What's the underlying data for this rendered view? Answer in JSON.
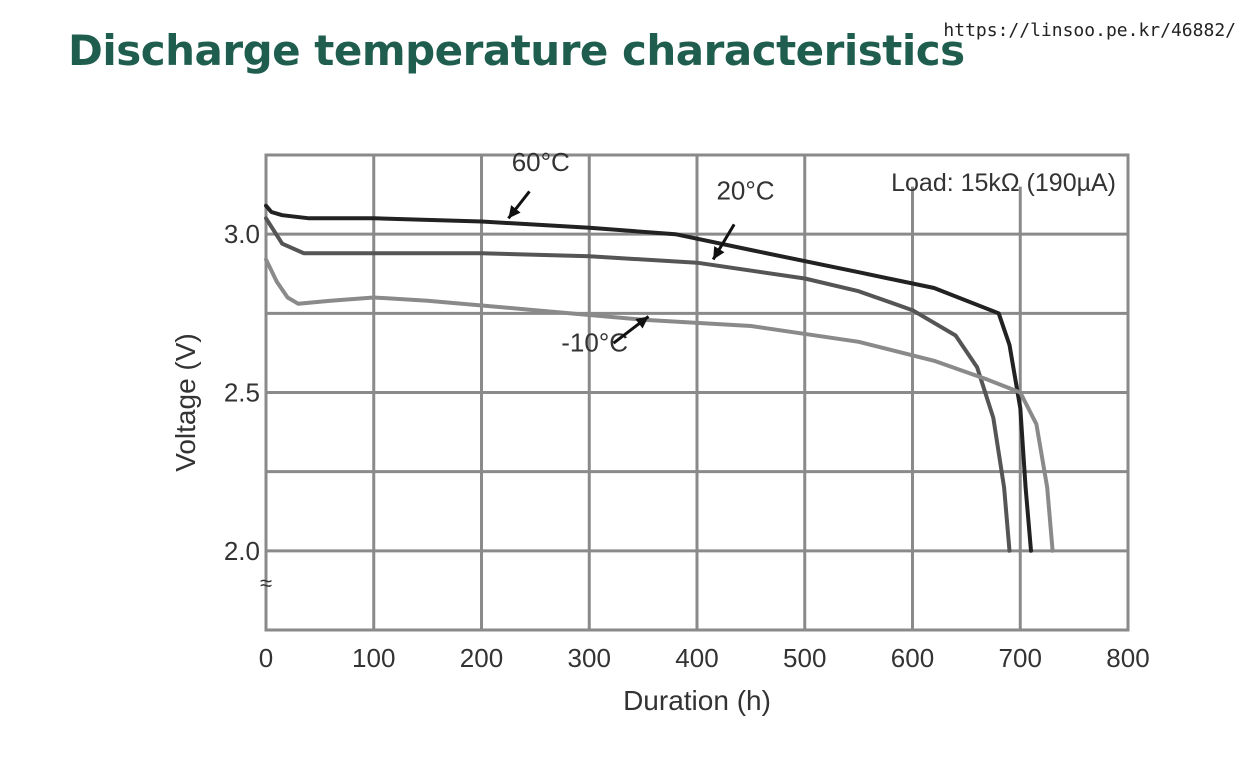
{
  "page": {
    "title": "Discharge temperature characteristics",
    "source_url": "https://linsoo.pe.kr/46882/"
  },
  "chart_data": {
    "type": "line",
    "xlabel": "Duration (h)",
    "ylabel": "Voltage (V)",
    "xlim": [
      0,
      800
    ],
    "ylim": [
      1.75,
      3.25
    ],
    "x_ticks": [
      0,
      100,
      200,
      300,
      400,
      500,
      600,
      700,
      800
    ],
    "y_tick_labels": [
      {
        "value": 3.0,
        "label": "3.0"
      },
      {
        "value": 2.5,
        "label": "2.5"
      },
      {
        "value": 2.0,
        "label": "2.0"
      }
    ],
    "axis_break_symbol": "≈",
    "grid": true,
    "load_label": "Load: 15kΩ (190µA)",
    "series": [
      {
        "name": "60°C",
        "color": "#222222",
        "x": [
          0,
          5,
          15,
          40,
          100,
          200,
          300,
          380,
          450,
          550,
          620,
          680,
          690,
          700,
          705,
          710
        ],
        "y": [
          3.09,
          3.07,
          3.06,
          3.05,
          3.05,
          3.04,
          3.02,
          3.0,
          2.95,
          2.88,
          2.83,
          2.75,
          2.65,
          2.45,
          2.2,
          2.0
        ]
      },
      {
        "name": "20°C",
        "color": "#555555",
        "x": [
          0,
          15,
          35,
          100,
          200,
          300,
          400,
          500,
          550,
          600,
          640,
          660,
          675,
          685,
          690
        ],
        "y": [
          3.05,
          2.97,
          2.94,
          2.94,
          2.94,
          2.93,
          2.91,
          2.86,
          2.82,
          2.76,
          2.68,
          2.58,
          2.42,
          2.2,
          2.0
        ]
      },
      {
        "name": "-10°C",
        "color": "#8a8a8a",
        "x": [
          0,
          10,
          20,
          30,
          60,
          100,
          150,
          250,
          350,
          450,
          550,
          620,
          670,
          700,
          715,
          725,
          730
        ],
        "y": [
          2.92,
          2.85,
          2.8,
          2.78,
          2.79,
          2.8,
          2.79,
          2.76,
          2.73,
          2.71,
          2.66,
          2.6,
          2.54,
          2.5,
          2.4,
          2.2,
          2.0
        ]
      }
    ],
    "annotations": [
      {
        "label": "60°C",
        "series": "60°C",
        "at_x": 225,
        "at_y": 3.05,
        "text_x": 255,
        "text_y": 3.2
      },
      {
        "label": "20°C",
        "series": "20°C",
        "at_x": 415,
        "at_y": 2.92,
        "text_x": 445,
        "text_y": 3.11
      },
      {
        "label": "-10°C",
        "series": "-10°C",
        "at_x": 355,
        "at_y": 2.74,
        "text_x": 305,
        "text_y": 2.63
      }
    ]
  }
}
